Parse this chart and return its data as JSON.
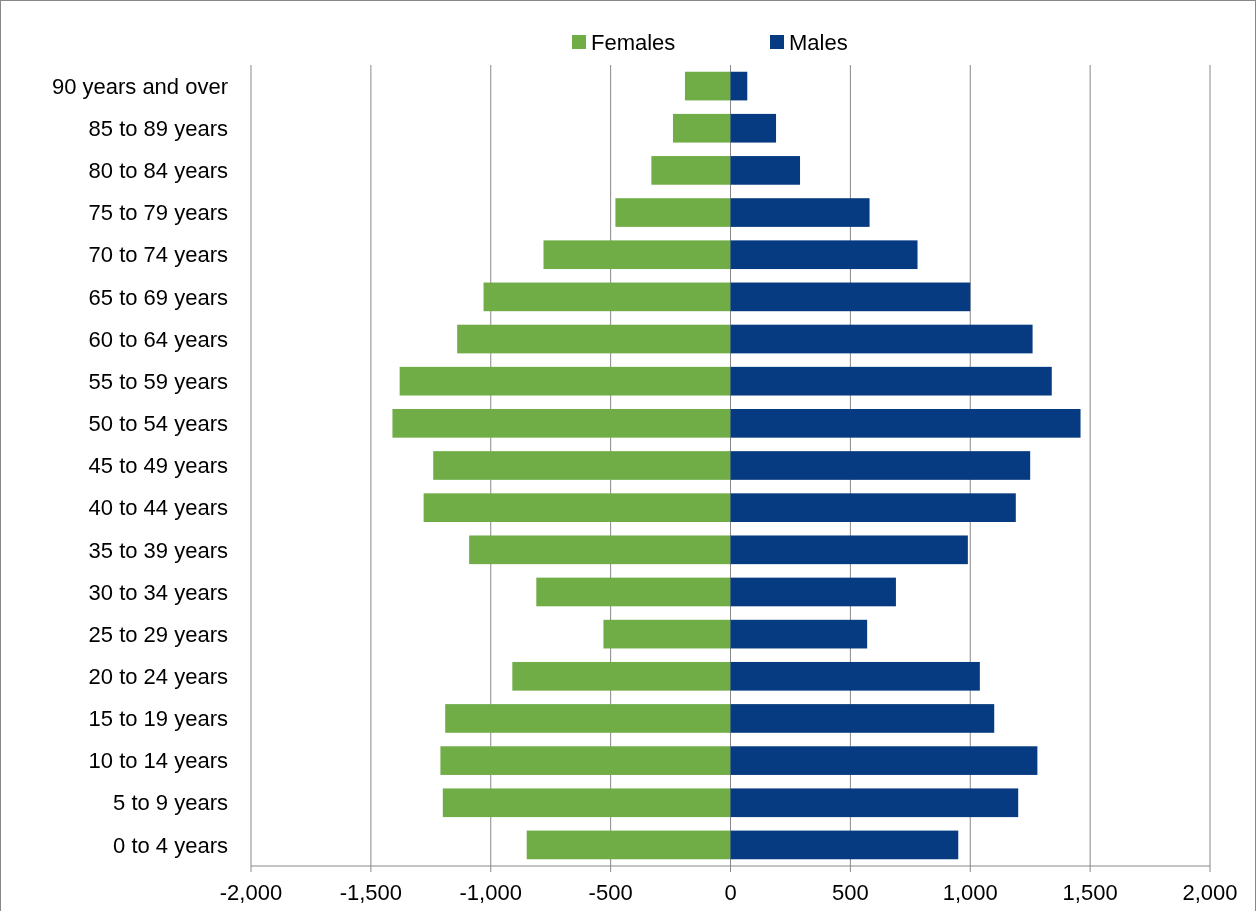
{
  "chart_data": {
    "type": "bar",
    "orientation": "horizontal",
    "stacked": true,
    "categories": [
      "90 years and over",
      "85 to 89 years",
      "80 to 84 years",
      "75 to 79 years",
      "70 to 74 years",
      "65 to 69 years",
      "60 to 64 years",
      "55 to 59 years",
      "50 to 54 years",
      "45 to 49 years",
      "40 to 44 years",
      "35 to 39 years",
      "30 to 34 years",
      "25 to 29 years",
      "20 to 24 years",
      "15 to 19 years",
      "10 to 14 years",
      "5 to 9 years",
      "0 to 4 years"
    ],
    "series": [
      {
        "name": "Females",
        "color": "#70ad47",
        "values": [
          -190,
          -240,
          -330,
          -480,
          -780,
          -1030,
          -1140,
          -1380,
          -1410,
          -1240,
          -1280,
          -1090,
          -810,
          -530,
          -910,
          -1190,
          -1210,
          -1200,
          -850
        ]
      },
      {
        "name": "Males",
        "color": "#063a81",
        "values": [
          70,
          190,
          290,
          580,
          780,
          1000,
          1260,
          1340,
          1460,
          1250,
          1190,
          990,
          690,
          570,
          1040,
          1100,
          1280,
          1200,
          950
        ]
      }
    ],
    "xlim": [
      -2000,
      2000
    ],
    "xticks": [
      {
        "value": -2000,
        "label": "-2,000"
      },
      {
        "value": -1500,
        "label": "-1,500"
      },
      {
        "value": -1000,
        "label": "-1,000"
      },
      {
        "value": -500,
        "label": "-500"
      },
      0,
      500,
      {
        "value": 1000,
        "label": "1,000"
      },
      {
        "value": 1500,
        "label": "1,500"
      },
      {
        "value": 2000,
        "label": "2,000"
      }
    ],
    "grid": "x",
    "legend": "top"
  }
}
